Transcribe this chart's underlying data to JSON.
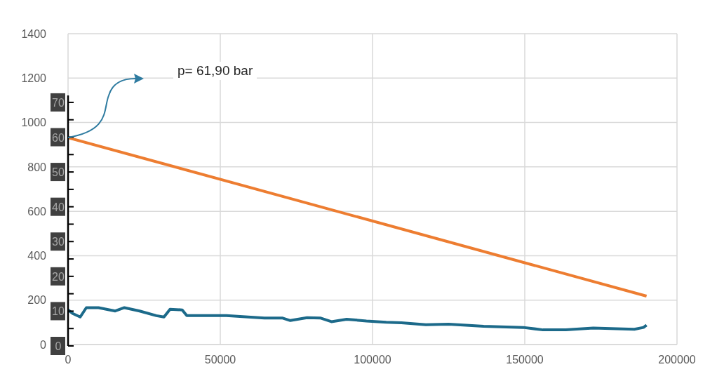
{
  "chart_data": {
    "type": "line",
    "xlim": [
      0,
      200000
    ],
    "xticks": [
      0,
      50000,
      100000,
      150000,
      200000
    ],
    "ylim": [
      0,
      1400
    ],
    "yticks": [
      0,
      200,
      400,
      600,
      800,
      1000,
      1200,
      1400
    ],
    "y2lim": [
      0,
      72
    ],
    "y2ticks": [
      0,
      {
        "value": 5,
        "label": null
      },
      10,
      {
        "value": 15,
        "label": null
      },
      20,
      {
        "value": 25,
        "label": null
      },
      30,
      {
        "value": 35,
        "label": null
      },
      40,
      {
        "value": 45,
        "label": null
      },
      50,
      {
        "value": 55,
        "label": null
      },
      60,
      {
        "value": 65,
        "label": null
      },
      70
    ],
    "grid": true,
    "legend": false,
    "marker": "none",
    "line_style": "solid",
    "annotations": [
      "p= 61,90 bar"
    ],
    "series": [
      {
        "color": "#ed7d31",
        "x": [
          0,
          190000
        ],
        "values": [
          932,
          218
        ]
      },
      {
        "color": "#1c6a8a",
        "x": [
          0,
          1500,
          4000,
          6000,
          10000,
          15500,
          18500,
          23500,
          29000,
          31500,
          33500,
          37500,
          39000,
          52000,
          64500,
          70500,
          73000,
          78500,
          83000,
          86500,
          91500,
          98000,
          104500,
          109500,
          117500,
          125000,
          136500,
          149500,
          156000,
          163500,
          172500,
          186000,
          189000,
          190000
        ],
        "values": [
          156,
          140,
          124,
          166,
          166,
          151,
          166,
          151,
          130,
          124,
          159,
          156,
          130,
          130,
          119,
          119,
          108,
          121,
          119,
          103,
          114,
          106,
          100,
          98,
          89,
          92,
          82,
          77,
          66,
          66,
          74,
          69,
          77,
          87
        ]
      }
    ]
  }
}
